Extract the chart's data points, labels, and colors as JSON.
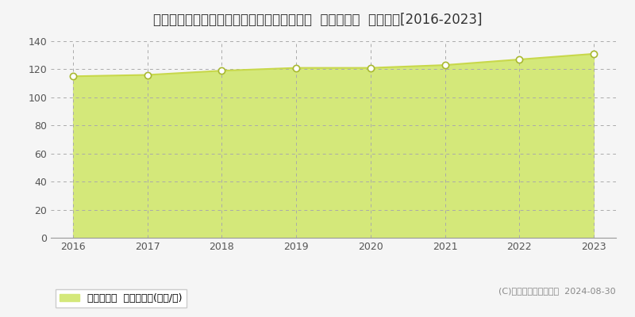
{
  "title": "神奈川県川崎市中原区井田１丁目２２７番６  基準地価格  地価推移[2016-2023]",
  "years": [
    2016,
    2017,
    2018,
    2019,
    2020,
    2021,
    2022,
    2023
  ],
  "values": [
    115,
    116,
    119,
    121,
    121,
    123,
    127,
    131
  ],
  "line_color": "#c8d84b",
  "fill_color": "#d4e87a",
  "marker_color": "#ffffff",
  "marker_edge_color": "#a8b830",
  "background_color": "#f5f5f5",
  "plot_bg_color": "#f5f5f5",
  "grid_color": "#aaaaaa",
  "ylim": [
    0,
    140
  ],
  "yticks": [
    0,
    20,
    40,
    60,
    80,
    100,
    120,
    140
  ],
  "xlabel_color": "#555555",
  "ylabel_color": "#555555",
  "title_fontsize": 12,
  "tick_fontsize": 9,
  "legend_label": "基準地価格  平均坪単価(万円/坪)",
  "copyright_text": "(C)土地価格ドットコム  2024-08-30",
  "copyright_fontsize": 8,
  "legend_fontsize": 9
}
